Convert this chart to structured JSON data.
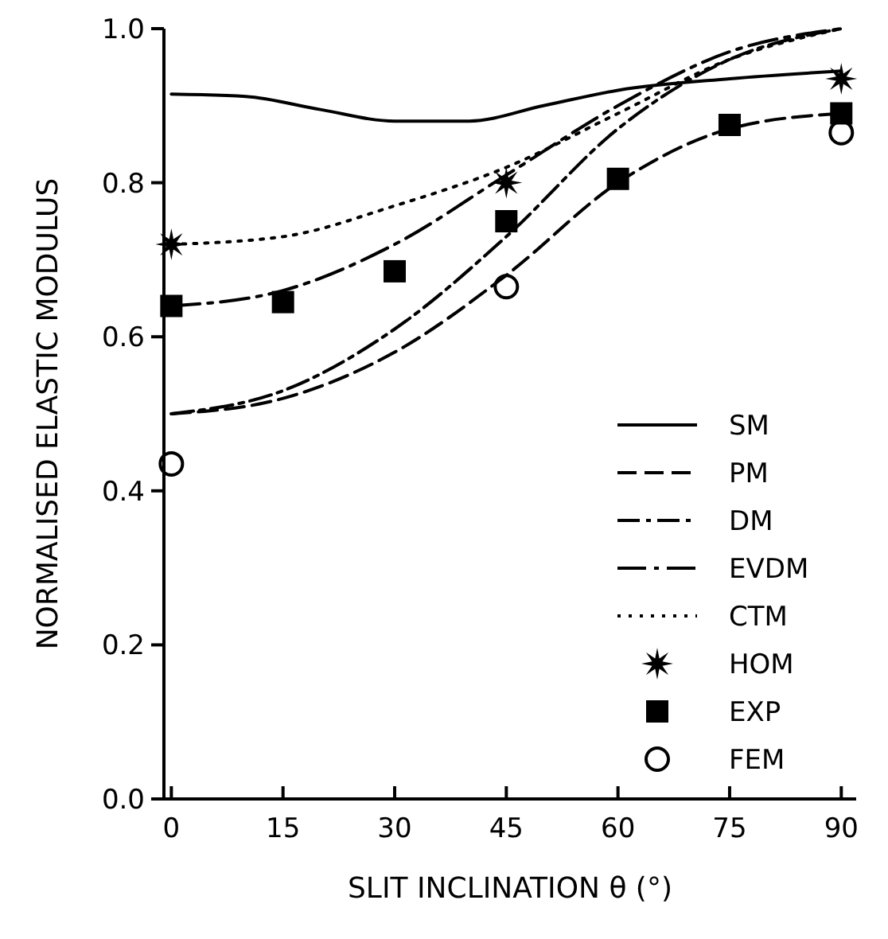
{
  "chart_data": {
    "type": "line",
    "xlabel": "SLIT INCLINATION θ (°)",
    "ylabel": "NORMALISED ELASTIC MODULUS",
    "xlim": [
      -1,
      92
    ],
    "ylim": [
      0,
      1.0
    ],
    "xticks": [
      0,
      15,
      30,
      45,
      60,
      75,
      90
    ],
    "yticks": [
      {
        "value": 0,
        "label": "0.0"
      },
      {
        "value": 0.2,
        "label": "0.2"
      },
      {
        "value": 0.4,
        "label": "0.4"
      },
      {
        "value": 0.6,
        "label": "0.6"
      },
      {
        "value": 0.8,
        "label": "0.8"
      },
      {
        "value": 1.0,
        "label": "1.0"
      }
    ],
    "legend": "bottom right",
    "grid": false,
    "series": [
      {
        "name": "SM",
        "color": "#000000",
        "line_style": "solid",
        "marker": "none",
        "x": [
          0,
          10,
          20,
          30,
          40,
          50,
          60,
          75,
          90
        ],
        "values": [
          0.915,
          0.912,
          0.895,
          0.88,
          0.88,
          0.9,
          0.92,
          0.935,
          0.945
        ]
      },
      {
        "name": "PM",
        "color": "#000000",
        "line_style": "dashed",
        "marker": "none",
        "x": [
          0,
          15,
          30,
          45,
          60,
          75,
          90
        ],
        "values": [
          0.5,
          0.52,
          0.58,
          0.68,
          0.8,
          0.87,
          0.89
        ]
      },
      {
        "name": "DM",
        "color": "#000000",
        "line_style": "dashed",
        "marker": "none",
        "x": [
          0,
          15,
          30,
          45,
          60,
          75,
          90
        ],
        "values": [
          0.5,
          0.53,
          0.61,
          0.73,
          0.87,
          0.96,
          1.0
        ]
      },
      {
        "name": "EVDM",
        "color": "#000000",
        "line_style": "dashed",
        "marker": "none",
        "x": [
          0,
          15,
          30,
          45,
          60,
          75,
          90
        ],
        "values": [
          0.64,
          0.66,
          0.72,
          0.81,
          0.9,
          0.97,
          1.0
        ]
      },
      {
        "name": "CTM",
        "color": "#000000",
        "line_style": "dotted",
        "marker": "none",
        "x": [
          0,
          15,
          30,
          45,
          60,
          75,
          90
        ],
        "values": [
          0.72,
          0.73,
          0.77,
          0.82,
          0.89,
          0.96,
          1.0
        ]
      },
      {
        "name": "HOM",
        "type": "scatter",
        "color": "#000000",
        "marker": "star",
        "x": [
          0,
          45,
          90
        ],
        "values": [
          0.72,
          0.8,
          0.935
        ]
      },
      {
        "name": "EXP",
        "type": "scatter",
        "color": "#000000",
        "marker": "square",
        "x": [
          0,
          15,
          30,
          45,
          60,
          75,
          90
        ],
        "values": [
          0.64,
          0.645,
          0.685,
          0.75,
          0.805,
          0.875,
          0.89
        ]
      },
      {
        "name": "FEM",
        "type": "scatter",
        "color": "#000000",
        "marker": "circle",
        "x": [
          0,
          45,
          90
        ],
        "values": [
          0.435,
          0.665,
          0.865
        ]
      }
    ]
  }
}
